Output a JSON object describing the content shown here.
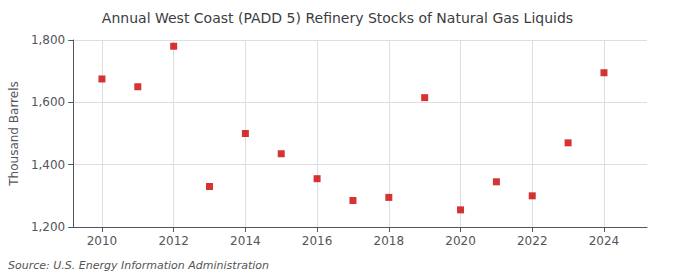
{
  "chart_data": {
    "type": "scatter",
    "title": "Annual West Coast (PADD 5) Refinery Stocks of Natural Gas Liquids",
    "ylabel": "Thousand Barrels",
    "annotation": "Source: U.S. Energy Information Administration",
    "x": [
      2010,
      2011,
      2012,
      2013,
      2014,
      2015,
      2016,
      2017,
      2018,
      2019,
      2020,
      2021,
      2022,
      2023,
      2024
    ],
    "values": [
      1675,
      1650,
      1780,
      1330,
      1500,
      1435,
      1355,
      1285,
      1295,
      1615,
      1255,
      1345,
      1300,
      1470,
      1695
    ],
    "color": "#cc0000",
    "marker": "square",
    "xlim": [
      2009.2,
      2025.2
    ],
    "xticks": [
      2010,
      2012,
      2014,
      2016,
      2018,
      2020,
      2022,
      2024
    ],
    "ylim": [
      1200,
      1800
    ],
    "yticks": [
      {
        "value": 1200,
        "label": "1,200"
      },
      {
        "value": 1400,
        "label": "1,400"
      },
      {
        "value": 1600,
        "label": "1,600"
      },
      {
        "value": 1800,
        "label": "1,800"
      }
    ],
    "grid": true
  }
}
